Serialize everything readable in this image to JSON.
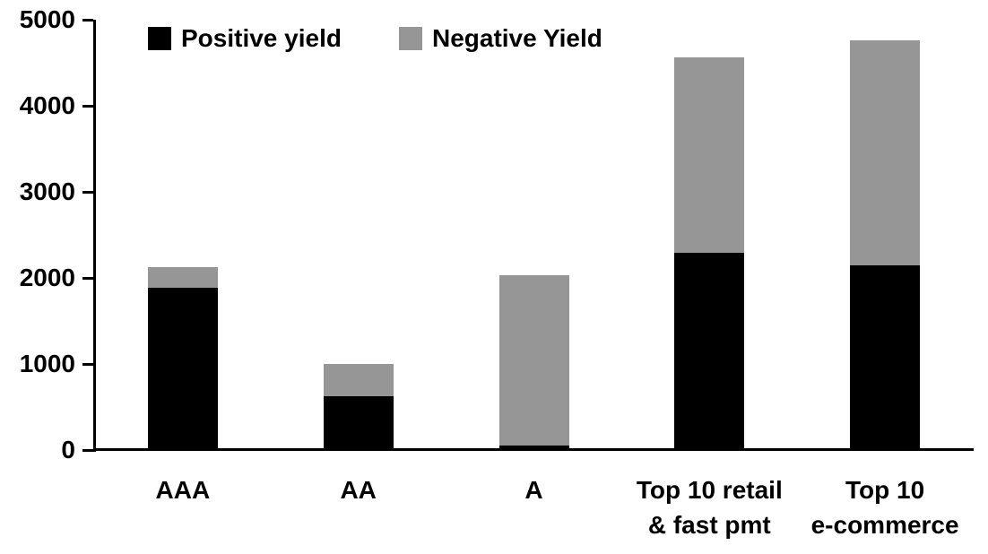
{
  "chart_data": {
    "type": "bar",
    "stacked": true,
    "title": "",
    "categories": [
      "AAA",
      "AA",
      "A",
      "Top 10 retail & fast pmt",
      "Top 10 e-commerce"
    ],
    "category_display_lines": [
      [
        "AAA"
      ],
      [
        "AA"
      ],
      [
        "A"
      ],
      [
        "Top 10 retail",
        "& fast pmt"
      ],
      [
        "Top 10",
        "e-commerce"
      ]
    ],
    "series": [
      {
        "name": "Positive yield",
        "color": "#000000",
        "values": [
          1890,
          620,
          50,
          2290,
          2150
        ]
      },
      {
        "name": "Negative Yield",
        "color": "#969696",
        "values": [
          240,
          380,
          1980,
          2270,
          2610
        ]
      }
    ],
    "totals": [
      2130,
      1000,
      2030,
      4560,
      4760
    ],
    "ylim": [
      0,
      5000
    ],
    "yticks": [
      0,
      1000,
      2000,
      3000,
      4000,
      5000
    ],
    "xlabel": "",
    "ylabel": "",
    "grid": false,
    "legend_position": "top-left",
    "axis_color": "#000000",
    "background_color": "#ffffff"
  }
}
